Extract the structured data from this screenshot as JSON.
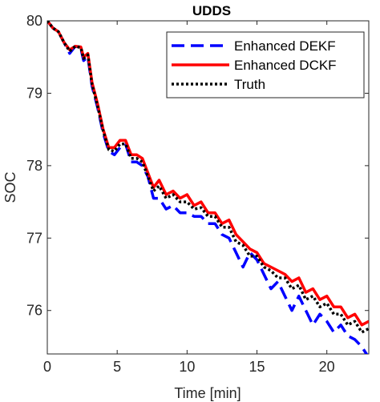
{
  "chart_data": {
    "type": "line",
    "title": "UDDS",
    "xlabel": "Time [min]",
    "ylabel": "SOC",
    "xlim": [
      0,
      23
    ],
    "ylim": [
      75.4,
      80.0
    ],
    "xticks": [
      0,
      5,
      10,
      15,
      20
    ],
    "yticks": [
      76,
      77,
      78,
      79,
      80
    ],
    "grid": false,
    "legend": "top-right",
    "series": [
      {
        "name": "Enhanced DEKF",
        "color": "#0000ff",
        "style": "dashed",
        "x": [
          0,
          0.4,
          0.8,
          1.2,
          1.6,
          2.0,
          2.4,
          2.6,
          2.9,
          3.2,
          3.6,
          4.0,
          4.4,
          4.8,
          5.2,
          5.6,
          6.0,
          6.4,
          6.8,
          7.2,
          7.6,
          8.0,
          8.5,
          9.0,
          9.5,
          10.0,
          10.5,
          11.0,
          11.5,
          12.0,
          12.5,
          13.0,
          13.5,
          14.0,
          14.5,
          15.0,
          15.5,
          16.0,
          16.5,
          17.0,
          17.5,
          18.0,
          18.5,
          19.0,
          19.5,
          20.0,
          20.5,
          21.0,
          21.5,
          22.0,
          22.5,
          23.0
        ],
        "y": [
          80.0,
          79.9,
          79.85,
          79.7,
          79.55,
          79.65,
          79.62,
          79.45,
          79.5,
          79.1,
          78.8,
          78.45,
          78.2,
          78.15,
          78.25,
          78.3,
          78.05,
          78.05,
          78.0,
          77.85,
          77.55,
          77.55,
          77.4,
          77.45,
          77.35,
          77.35,
          77.3,
          77.3,
          77.2,
          77.2,
          77.05,
          77.0,
          76.8,
          76.6,
          76.8,
          76.7,
          76.5,
          76.3,
          76.4,
          76.2,
          76.0,
          76.2,
          76.0,
          75.8,
          75.95,
          75.85,
          75.7,
          75.8,
          75.65,
          75.6,
          75.5,
          75.35
        ]
      },
      {
        "name": "Enhanced DCKF",
        "color": "#ff0000",
        "style": "solid",
        "x": [
          0,
          0.4,
          0.8,
          1.2,
          1.6,
          2.0,
          2.4,
          2.6,
          2.9,
          3.2,
          3.6,
          4.0,
          4.4,
          4.8,
          5.2,
          5.6,
          6.0,
          6.4,
          6.8,
          7.2,
          7.6,
          8.0,
          8.5,
          9.0,
          9.5,
          10.0,
          10.5,
          11.0,
          11.5,
          12.0,
          12.5,
          13.0,
          13.5,
          14.0,
          14.5,
          15.0,
          15.5,
          16.0,
          16.5,
          17.0,
          17.5,
          18.0,
          18.5,
          19.0,
          19.5,
          20.0,
          20.5,
          21.0,
          21.5,
          22.0,
          22.5,
          23.0
        ],
        "y": [
          80.0,
          79.9,
          79.85,
          79.7,
          79.6,
          79.65,
          79.64,
          79.5,
          79.55,
          79.15,
          78.85,
          78.5,
          78.25,
          78.25,
          78.35,
          78.35,
          78.15,
          78.15,
          78.1,
          77.9,
          77.7,
          77.8,
          77.6,
          77.65,
          77.55,
          77.6,
          77.45,
          77.5,
          77.35,
          77.35,
          77.2,
          77.25,
          77.05,
          76.95,
          76.85,
          76.8,
          76.65,
          76.6,
          76.55,
          76.5,
          76.4,
          76.45,
          76.25,
          76.3,
          76.15,
          76.2,
          76.05,
          76.05,
          75.9,
          75.95,
          75.8,
          75.85
        ]
      },
      {
        "name": "Truth",
        "color": "#000000",
        "style": "dotted",
        "x": [
          0,
          0.4,
          0.8,
          1.2,
          1.6,
          2.0,
          2.4,
          2.6,
          2.9,
          3.2,
          3.6,
          4.0,
          4.4,
          4.8,
          5.2,
          5.6,
          6.0,
          6.4,
          6.8,
          7.2,
          7.6,
          8.0,
          8.5,
          9.0,
          9.5,
          10.0,
          10.5,
          11.0,
          11.5,
          12.0,
          12.5,
          13.0,
          13.5,
          14.0,
          14.5,
          15.0,
          15.5,
          16.0,
          16.5,
          17.0,
          17.5,
          18.0,
          18.5,
          19.0,
          19.5,
          20.0,
          20.5,
          21.0,
          21.5,
          22.0,
          22.5,
          23.0
        ],
        "y": [
          80.0,
          79.9,
          79.85,
          79.7,
          79.58,
          79.65,
          79.63,
          79.48,
          79.53,
          79.12,
          78.82,
          78.48,
          78.22,
          78.2,
          78.3,
          78.3,
          78.1,
          78.1,
          78.05,
          77.85,
          77.65,
          77.72,
          77.55,
          77.6,
          77.5,
          77.5,
          77.4,
          77.42,
          77.3,
          77.3,
          77.15,
          77.15,
          76.95,
          76.9,
          76.75,
          76.75,
          76.6,
          76.55,
          76.45,
          76.45,
          76.3,
          76.35,
          76.15,
          76.2,
          76.05,
          76.1,
          75.95,
          75.95,
          75.8,
          75.85,
          75.7,
          75.75
        ]
      }
    ]
  }
}
